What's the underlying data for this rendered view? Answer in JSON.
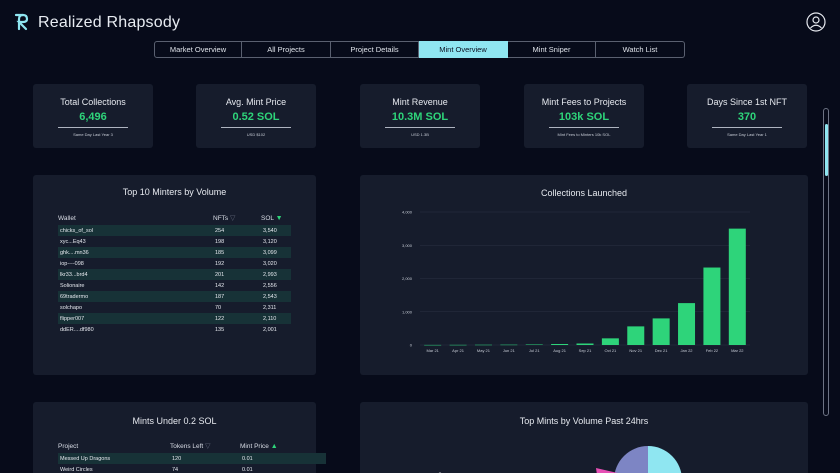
{
  "app": {
    "brand": "Realized Rhapsody"
  },
  "tabs": [
    {
      "label": "Market Overview",
      "active": false
    },
    {
      "label": "All Projects",
      "active": false
    },
    {
      "label": "Project Details",
      "active": false
    },
    {
      "label": "Mint Overview",
      "active": true
    },
    {
      "label": "Mint Sniper",
      "active": false
    },
    {
      "label": "Watch List",
      "active": false
    }
  ],
  "kpis": [
    {
      "title": "Total Collections",
      "value": "6,496",
      "sub": "Same Day Last Year 3"
    },
    {
      "title": "Avg. Mint Price",
      "value": "0.52 SOL",
      "sub": "USD $102"
    },
    {
      "title": "Mint Revenue",
      "value": "10.3M SOL",
      "sub": "USD 1.3B"
    },
    {
      "title": "Mint Fees to Projects",
      "value": "103k SOL",
      "sub": "Mint Fees to Minters 10k SOL"
    },
    {
      "title": "Days Since 1st NFT",
      "value": "370",
      "sub": "Same Day Last Year 1"
    }
  ],
  "top_minters": {
    "title": "Top 10 Minters by Volume",
    "columns": [
      "Wallet",
      "NFTs",
      "SOL"
    ],
    "rows": [
      [
        "chicks_of_sol",
        "254",
        "3,540"
      ],
      [
        "xyc...Eq43",
        "198",
        "3,120"
      ],
      [
        "ghk....mn36",
        "185",
        "3,099"
      ],
      [
        "iop----098",
        "192",
        "3,020"
      ],
      [
        "lkr33...brd4",
        "201",
        "2,993"
      ],
      [
        "Solionaire",
        "142",
        "2,556"
      ],
      [
        "69tradermo",
        "187",
        "2,543"
      ],
      [
        "solchapo",
        "70",
        "2,311"
      ],
      [
        "flipper007",
        "122",
        "2,110"
      ],
      [
        "ddER....df980",
        "135",
        "2,001"
      ]
    ]
  },
  "collections_launched": {
    "title": "Collections Launched",
    "chart_data": {
      "type": "bar",
      "categories": [
        "Mar 21",
        "Apr 21",
        "May 21",
        "Jun 21",
        "Jul 21",
        "Aug 21",
        "Sep 21",
        "Oct 21",
        "Nov 21",
        "Dec 21",
        "Jan 22",
        "Feb 22",
        "Mar 22"
      ],
      "values": [
        3,
        5,
        8,
        10,
        15,
        30,
        45,
        200,
        560,
        800,
        1260,
        2330,
        3500
      ],
      "ylim": [
        0,
        4000
      ],
      "yticks": [
        "0",
        "1,000",
        "2,000",
        "3,000",
        "4,000"
      ],
      "color": "#2ed47a"
    }
  },
  "mints_under": {
    "title": "Mints Under 0.2 SOL",
    "columns": [
      "Project",
      "Tokens Left",
      "Mint Price"
    ],
    "rows": [
      [
        "Messed Up Dragons",
        "120",
        "0.01"
      ],
      [
        "Weird Circles",
        "74",
        "0.01"
      ]
    ]
  },
  "top_mints": {
    "title": "Top Mints by Volume Past 24hrs",
    "chart_data": {
      "type": "pie",
      "colors": [
        "#8fe6f1",
        "#7d85c4",
        "#e64fb5"
      ]
    }
  }
}
